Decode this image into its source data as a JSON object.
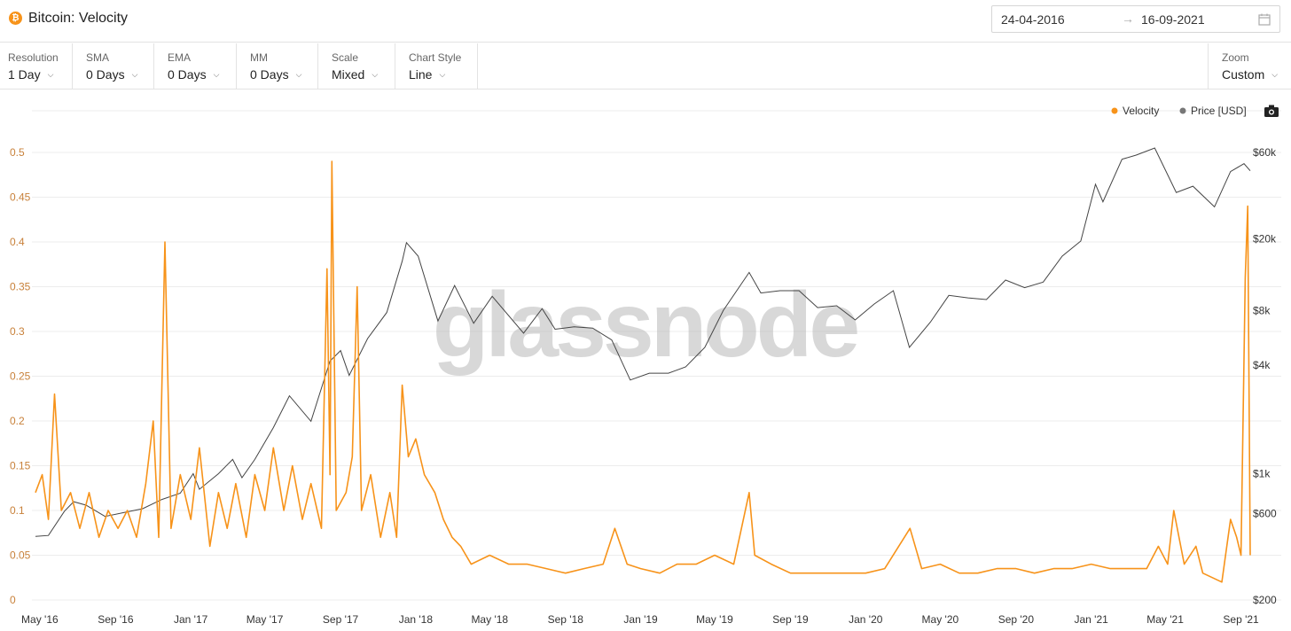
{
  "header": {
    "title": "Bitcoin: Velocity",
    "logo_glyph": "₿",
    "logo_color": "#f7931a",
    "date_start": "24-04-2016",
    "date_arrow": "→",
    "date_end": "16-09-2021",
    "calendar_icon": "calendar-icon"
  },
  "toolbar": {
    "resolution": {
      "label": "Resolution",
      "value": "1 Day"
    },
    "sma": {
      "label": "SMA",
      "value": "0 Days"
    },
    "ema": {
      "label": "EMA",
      "value": "0 Days"
    },
    "mm": {
      "label": "MM",
      "value": "0 Days"
    },
    "scale": {
      "label": "Scale",
      "value": "Mixed"
    },
    "chart_style": {
      "label": "Chart Style",
      "value": "Line"
    },
    "zoom": {
      "label": "Zoom",
      "value": "Custom"
    },
    "chevron": "⌵"
  },
  "watermark": "glassnode",
  "colors": {
    "velocity": "#f7931a",
    "price": "#444444",
    "legend_price_dot": "#777777"
  },
  "chart_data": {
    "type": "line",
    "legend": [
      {
        "name": "Velocity",
        "color": "#f7931a"
      },
      {
        "name": "Price [USD]",
        "color": "#777777"
      }
    ],
    "legend_placement": "top-right",
    "grid": true,
    "x_range": [
      "2016-04-24",
      "2021-09-16"
    ],
    "x_ticks": [
      "May '16",
      "Sep '16",
      "Jan '17",
      "May '17",
      "Sep '17",
      "Jan '18",
      "May '18",
      "Sep '18",
      "Jan '19",
      "May '19",
      "Sep '19",
      "Jan '20",
      "May '20",
      "Sep '20",
      "Jan '21",
      "May '21",
      "Sep '21"
    ],
    "x_tick_dates": [
      "2016-05-01",
      "2016-09-01",
      "2017-01-01",
      "2017-05-01",
      "2017-09-01",
      "2018-01-01",
      "2018-05-01",
      "2018-09-01",
      "2019-01-01",
      "2019-05-01",
      "2019-09-01",
      "2020-01-01",
      "2020-05-01",
      "2020-09-01",
      "2021-01-01",
      "2021-05-01",
      "2021-09-01"
    ],
    "left_axis": {
      "label": "",
      "scale": "linear",
      "range": [
        0,
        0.5
      ],
      "ticks": [
        "0",
        "0.05",
        "0.1",
        "0.15",
        "0.2",
        "0.25",
        "0.3",
        "0.35",
        "0.4",
        "0.45",
        "0.5"
      ],
      "tick_values": [
        0,
        0.05,
        0.1,
        0.15,
        0.2,
        0.25,
        0.3,
        0.35,
        0.4,
        0.45,
        0.5
      ]
    },
    "right_axis": {
      "label": "",
      "scale": "log",
      "range": [
        200,
        60000
      ],
      "ticks": [
        "$200",
        "$600",
        "$1k",
        "$4k",
        "$8k",
        "$20k",
        "$60k"
      ],
      "tick_values": [
        200,
        600,
        1000,
        4000,
        8000,
        20000,
        60000
      ]
    },
    "series": [
      {
        "name": "Velocity",
        "axis": "left",
        "points": [
          [
            "2016-04-24",
            0.12
          ],
          [
            "2016-05-05",
            0.14
          ],
          [
            "2016-05-15",
            0.09
          ],
          [
            "2016-05-25",
            0.23
          ],
          [
            "2016-06-05",
            0.1
          ],
          [
            "2016-06-20",
            0.12
          ],
          [
            "2016-07-05",
            0.08
          ],
          [
            "2016-07-20",
            0.12
          ],
          [
            "2016-08-05",
            0.07
          ],
          [
            "2016-08-20",
            0.1
          ],
          [
            "2016-09-05",
            0.08
          ],
          [
            "2016-09-20",
            0.1
          ],
          [
            "2016-10-05",
            0.07
          ],
          [
            "2016-10-20",
            0.13
          ],
          [
            "2016-11-01",
            0.2
          ],
          [
            "2016-11-10",
            0.07
          ],
          [
            "2016-11-20",
            0.4
          ],
          [
            "2016-11-30",
            0.08
          ],
          [
            "2016-12-15",
            0.14
          ],
          [
            "2017-01-01",
            0.09
          ],
          [
            "2017-01-15",
            0.17
          ],
          [
            "2017-02-01",
            0.06
          ],
          [
            "2017-02-15",
            0.12
          ],
          [
            "2017-03-01",
            0.08
          ],
          [
            "2017-03-15",
            0.13
          ],
          [
            "2017-04-01",
            0.07
          ],
          [
            "2017-04-15",
            0.14
          ],
          [
            "2017-05-01",
            0.1
          ],
          [
            "2017-05-15",
            0.17
          ],
          [
            "2017-06-01",
            0.1
          ],
          [
            "2017-06-15",
            0.15
          ],
          [
            "2017-07-01",
            0.09
          ],
          [
            "2017-07-15",
            0.13
          ],
          [
            "2017-08-01",
            0.08
          ],
          [
            "2017-08-10",
            0.37
          ],
          [
            "2017-08-15",
            0.14
          ],
          [
            "2017-08-18",
            0.49
          ],
          [
            "2017-08-25",
            0.1
          ],
          [
            "2017-09-10",
            0.12
          ],
          [
            "2017-09-20",
            0.16
          ],
          [
            "2017-09-28",
            0.35
          ],
          [
            "2017-10-05",
            0.1
          ],
          [
            "2017-10-20",
            0.14
          ],
          [
            "2017-11-05",
            0.07
          ],
          [
            "2017-11-20",
            0.12
          ],
          [
            "2017-12-01",
            0.07
          ],
          [
            "2017-12-10",
            0.24
          ],
          [
            "2017-12-20",
            0.16
          ],
          [
            "2018-01-01",
            0.18
          ],
          [
            "2018-01-15",
            0.14
          ],
          [
            "2018-02-01",
            0.12
          ],
          [
            "2018-02-15",
            0.09
          ],
          [
            "2018-03-01",
            0.07
          ],
          [
            "2018-03-15",
            0.06
          ],
          [
            "2018-04-01",
            0.04
          ],
          [
            "2018-05-01",
            0.05
          ],
          [
            "2018-06-01",
            0.04
          ],
          [
            "2018-07-01",
            0.04
          ],
          [
            "2018-08-01",
            0.035
          ],
          [
            "2018-09-01",
            0.03
          ],
          [
            "2018-10-01",
            0.035
          ],
          [
            "2018-11-01",
            0.04
          ],
          [
            "2018-11-20",
            0.08
          ],
          [
            "2018-12-10",
            0.04
          ],
          [
            "2019-01-01",
            0.035
          ],
          [
            "2019-02-01",
            0.03
          ],
          [
            "2019-03-01",
            0.04
          ],
          [
            "2019-04-01",
            0.04
          ],
          [
            "2019-05-01",
            0.05
          ],
          [
            "2019-06-01",
            0.04
          ],
          [
            "2019-06-26",
            0.12
          ],
          [
            "2019-07-05",
            0.05
          ],
          [
            "2019-08-01",
            0.04
          ],
          [
            "2019-09-01",
            0.03
          ],
          [
            "2019-10-01",
            0.03
          ],
          [
            "2019-11-01",
            0.03
          ],
          [
            "2019-12-01",
            0.03
          ],
          [
            "2020-01-01",
            0.03
          ],
          [
            "2020-02-01",
            0.035
          ],
          [
            "2020-03-13",
            0.08
          ],
          [
            "2020-04-01",
            0.035
          ],
          [
            "2020-05-01",
            0.04
          ],
          [
            "2020-06-01",
            0.03
          ],
          [
            "2020-07-01",
            0.03
          ],
          [
            "2020-08-01",
            0.035
          ],
          [
            "2020-09-01",
            0.035
          ],
          [
            "2020-10-01",
            0.03
          ],
          [
            "2020-11-01",
            0.035
          ],
          [
            "2020-12-01",
            0.035
          ],
          [
            "2021-01-01",
            0.04
          ],
          [
            "2021-02-01",
            0.035
          ],
          [
            "2021-03-01",
            0.035
          ],
          [
            "2021-04-01",
            0.035
          ],
          [
            "2021-04-20",
            0.06
          ],
          [
            "2021-05-05",
            0.04
          ],
          [
            "2021-05-15",
            0.1
          ],
          [
            "2021-06-01",
            0.04
          ],
          [
            "2021-06-20",
            0.06
          ],
          [
            "2021-07-01",
            0.03
          ],
          [
            "2021-08-01",
            0.02
          ],
          [
            "2021-08-15",
            0.09
          ],
          [
            "2021-08-25",
            0.07
          ],
          [
            "2021-09-01",
            0.05
          ],
          [
            "2021-09-08",
            0.36
          ],
          [
            "2021-09-12",
            0.44
          ],
          [
            "2021-09-16",
            0.05
          ]
        ]
      },
      {
        "name": "Price [USD]",
        "axis": "right",
        "points": [
          [
            "2016-04-24",
            450
          ],
          [
            "2016-05-15",
            455
          ],
          [
            "2016-06-10",
            620
          ],
          [
            "2016-06-25",
            700
          ],
          [
            "2016-07-15",
            670
          ],
          [
            "2016-08-15",
            580
          ],
          [
            "2016-09-15",
            610
          ],
          [
            "2016-10-15",
            640
          ],
          [
            "2016-11-15",
            720
          ],
          [
            "2016-12-15",
            780
          ],
          [
            "2017-01-05",
            1000
          ],
          [
            "2017-01-15",
            820
          ],
          [
            "2017-02-15",
            1000
          ],
          [
            "2017-03-10",
            1200
          ],
          [
            "2017-03-25",
            950
          ],
          [
            "2017-04-15",
            1200
          ],
          [
            "2017-05-15",
            1800
          ],
          [
            "2017-06-10",
            2700
          ],
          [
            "2017-07-15",
            1950
          ],
          [
            "2017-08-15",
            4200
          ],
          [
            "2017-09-01",
            4800
          ],
          [
            "2017-09-15",
            3500
          ],
          [
            "2017-10-15",
            5600
          ],
          [
            "2017-11-15",
            7800
          ],
          [
            "2017-12-10",
            15000
          ],
          [
            "2017-12-17",
            19000
          ],
          [
            "2018-01-05",
            16000
          ],
          [
            "2018-02-06",
            7000
          ],
          [
            "2018-03-05",
            11000
          ],
          [
            "2018-04-05",
            6800
          ],
          [
            "2018-05-05",
            9600
          ],
          [
            "2018-06-25",
            6000
          ],
          [
            "2018-07-25",
            8200
          ],
          [
            "2018-08-15",
            6300
          ],
          [
            "2018-09-15",
            6500
          ],
          [
            "2018-10-15",
            6400
          ],
          [
            "2018-11-15",
            5500
          ],
          [
            "2018-12-15",
            3300
          ],
          [
            "2019-01-15",
            3600
          ],
          [
            "2019-02-15",
            3600
          ],
          [
            "2019-03-15",
            3900
          ],
          [
            "2019-04-15",
            5000
          ],
          [
            "2019-05-15",
            8000
          ],
          [
            "2019-06-26",
            13000
          ],
          [
            "2019-07-15",
            10000
          ],
          [
            "2019-08-15",
            10300
          ],
          [
            "2019-09-15",
            10300
          ],
          [
            "2019-10-15",
            8300
          ],
          [
            "2019-11-15",
            8500
          ],
          [
            "2019-12-15",
            7100
          ],
          [
            "2020-01-15",
            8700
          ],
          [
            "2020-02-15",
            10300
          ],
          [
            "2020-03-12",
            5000
          ],
          [
            "2020-04-15",
            6900
          ],
          [
            "2020-05-15",
            9700
          ],
          [
            "2020-06-15",
            9400
          ],
          [
            "2020-07-15",
            9200
          ],
          [
            "2020-08-15",
            11800
          ],
          [
            "2020-09-15",
            10700
          ],
          [
            "2020-10-15",
            11500
          ],
          [
            "2020-11-15",
            16000
          ],
          [
            "2020-12-15",
            19400
          ],
          [
            "2021-01-08",
            40000
          ],
          [
            "2021-01-20",
            32000
          ],
          [
            "2021-02-20",
            55000
          ],
          [
            "2021-03-15",
            58000
          ],
          [
            "2021-04-14",
            63500
          ],
          [
            "2021-05-19",
            36000
          ],
          [
            "2021-06-15",
            39000
          ],
          [
            "2021-07-20",
            30000
          ],
          [
            "2021-08-15",
            47000
          ],
          [
            "2021-09-06",
            52000
          ],
          [
            "2021-09-16",
            47500
          ]
        ]
      }
    ]
  }
}
